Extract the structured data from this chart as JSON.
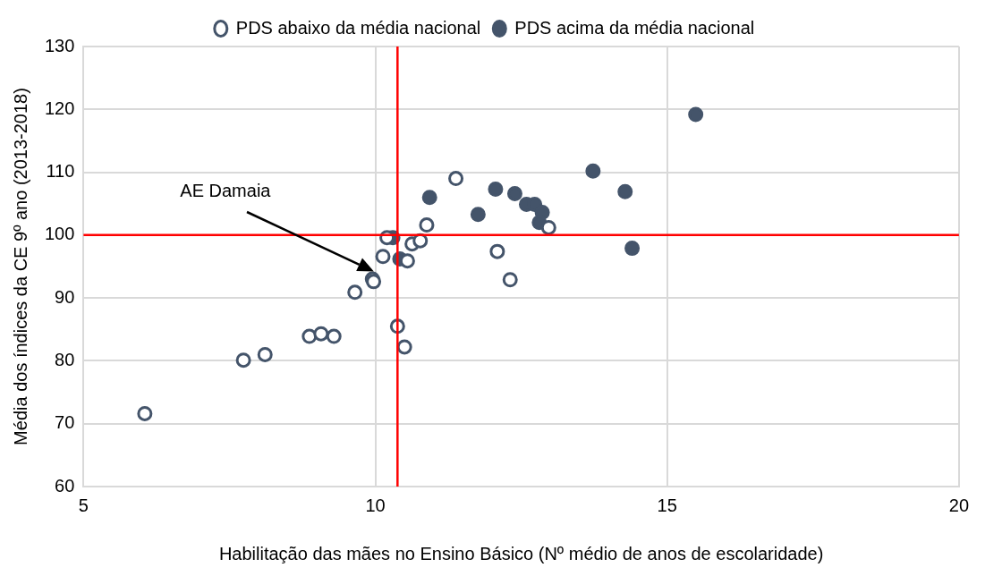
{
  "chart_data": {
    "type": "scatter",
    "xlabel": "Habilitação das mães no Ensino Básico (Nº médio de anos de escolaridade)",
    "ylabel": "Média dos índices da CE 9º ano (2013-2018)",
    "xlim": [
      5,
      20
    ],
    "xticks": [
      5,
      10,
      15,
      20
    ],
    "ylim": [
      60,
      130
    ],
    "yticks": [
      60,
      70,
      80,
      90,
      100,
      110,
      120,
      130
    ],
    "grid": true,
    "legend": "top",
    "marker": "circle",
    "series": [
      {
        "name": "PDS abaixo da média nacional",
        "color": "#44546a",
        "x": [
          6.05,
          7.74,
          8.11,
          8.87,
          9.07,
          9.29,
          9.65,
          9.95,
          9.97,
          10.13,
          10.2,
          10.38,
          10.5,
          10.55,
          10.63,
          10.77,
          10.88,
          11.38,
          12.09,
          12.31,
          12.97
        ],
        "values": [
          71.6,
          80.1,
          81.0,
          83.9,
          84.3,
          83.9,
          90.9,
          93.0,
          92.6,
          96.6,
          99.6,
          85.5,
          82.2,
          95.9,
          98.6,
          99.1,
          101.6,
          109.0,
          97.4,
          92.9,
          101.2
        ]
      },
      {
        "name": "PDS acima da média nacional",
        "color": "#44546a",
        "x": [
          10.3,
          10.42,
          10.93,
          11.76,
          12.06,
          12.39,
          12.59,
          12.73,
          12.86,
          12.81,
          13.73,
          14.28,
          14.4,
          15.49
        ],
        "values": [
          99.6,
          96.2,
          106.0,
          103.3,
          107.3,
          106.6,
          104.9,
          104.9,
          103.6,
          102.0,
          110.2,
          106.9,
          97.9,
          119.2
        ]
      }
    ],
    "ref_lines": [
      {
        "axis": "x",
        "value": 10.38,
        "color": "#ff0000"
      },
      {
        "axis": "y",
        "value": 100,
        "color": "#ff0000"
      }
    ],
    "annotations": [
      "AE Damaia"
    ]
  }
}
